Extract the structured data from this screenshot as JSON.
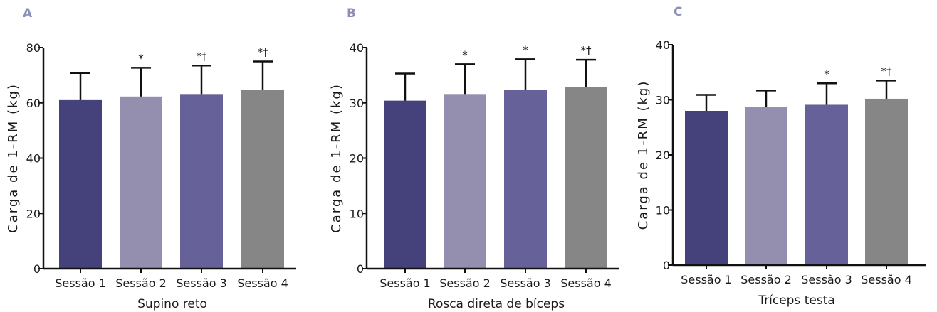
{
  "chart_data": [
    {
      "type": "bar",
      "panel": "A",
      "title": "",
      "xlabel": "Supino reto",
      "ylabel": "Carga de 1-RM (kg)",
      "ylim": [
        0,
        80
      ],
      "yticks": [
        "0",
        "20",
        "40",
        "60",
        "80"
      ],
      "categories": [
        "Sessão 1",
        "Sessão 2",
        "Sessão 3",
        "Sessão 4"
      ],
      "values": [
        61,
        62.3,
        63.2,
        64.6
      ],
      "errors": [
        9.8,
        10.4,
        10.3,
        10.4
      ],
      "annotations": [
        "",
        "*",
        "*†",
        "*†"
      ],
      "colors": [
        "#45417a",
        "#948eaf",
        "#67619a",
        "#868686"
      ]
    },
    {
      "type": "bar",
      "panel": "B",
      "title": "",
      "xlabel": "Rosca direta de bíceps",
      "ylabel": "Carga de 1-RM (kg)",
      "ylim": [
        0,
        40
      ],
      "yticks": [
        "0",
        "10",
        "20",
        "30",
        "40"
      ],
      "categories": [
        "Sessão 1",
        "Sessão 2",
        "Sessão 3",
        "Sessão 4"
      ],
      "values": [
        30.4,
        31.6,
        32.4,
        32.8
      ],
      "errors": [
        4.9,
        5.4,
        5.5,
        5.0
      ],
      "annotations": [
        "",
        "*",
        "*",
        "*†"
      ],
      "colors": [
        "#45417a",
        "#948eaf",
        "#67619a",
        "#868686"
      ]
    },
    {
      "type": "bar",
      "panel": "C",
      "title": "",
      "xlabel": "Tríceps testa",
      "ylabel": "Carga de 1-RM (kg)",
      "ylim": [
        0,
        40
      ],
      "yticks": [
        "0",
        "10",
        "20",
        "30",
        "40"
      ],
      "categories": [
        "Sessão 1",
        "Sessão 2",
        "Sessão 3",
        "Sessão 4"
      ],
      "values": [
        28.0,
        28.7,
        29.1,
        30.2
      ],
      "errors": [
        2.9,
        3.0,
        3.9,
        3.3
      ],
      "annotations": [
        "",
        "",
        "*",
        "*†"
      ],
      "colors": [
        "#45417a",
        "#948eaf",
        "#67619a",
        "#868686"
      ]
    }
  ]
}
